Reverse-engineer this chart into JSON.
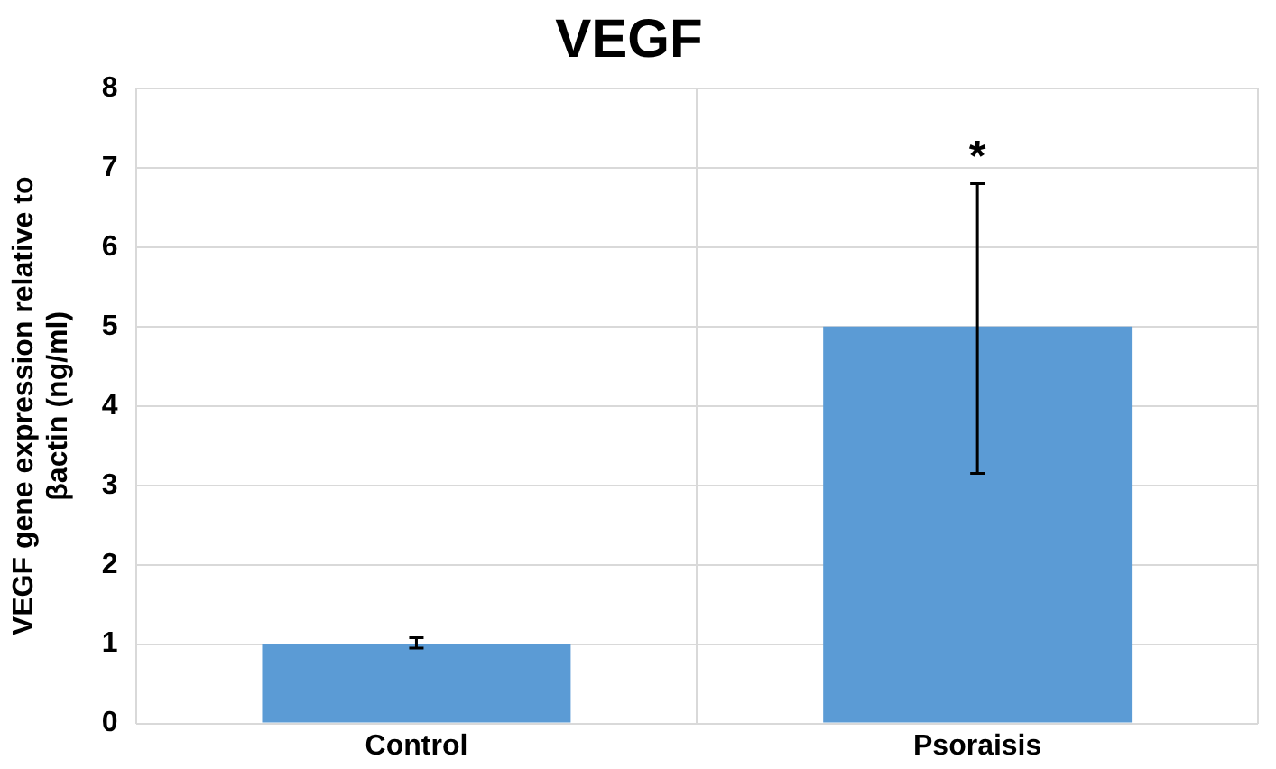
{
  "chart_data": {
    "type": "bar",
    "title": "VEGF",
    "ylabel": "VEGF gene expression relative to βactin (ng/ml)",
    "categories": [
      "Control",
      "Psoraisis"
    ],
    "values": [
      1.0,
      5.0
    ],
    "errors": [
      [
        0.95,
        1.08
      ],
      [
        3.15,
        6.8
      ]
    ],
    "color": "#5b9bd5",
    "ylim": [
      0,
      8
    ],
    "yticks": [
      0,
      1,
      2,
      3,
      4,
      5,
      6,
      7,
      8
    ],
    "grid": true,
    "legend": false,
    "annotations": [
      "*"
    ]
  }
}
